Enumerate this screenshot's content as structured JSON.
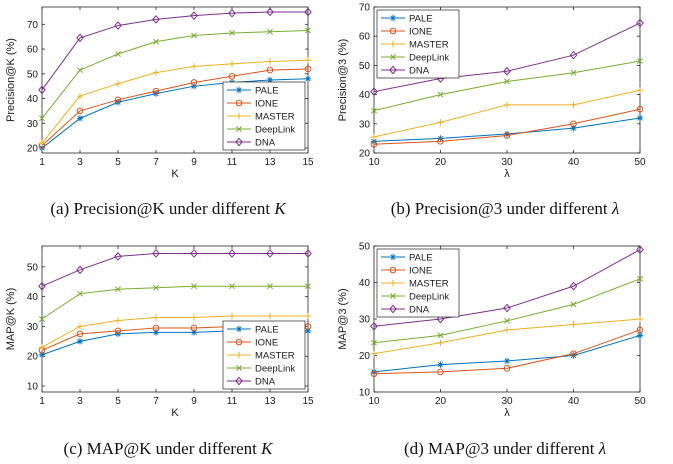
{
  "captions": [
    {
      "prefix": "(a) Precision@K under different ",
      "var": "K"
    },
    {
      "prefix": "(b) Precision@3 under different ",
      "var": "λ"
    },
    {
      "prefix": "(c) MAP@K under different ",
      "var": "K"
    },
    {
      "prefix": "(d) MAP@3 under different ",
      "var": "λ"
    }
  ],
  "colors": {
    "PALE": "#0072bd",
    "IONE": "#d95319",
    "MASTER": "#edb120",
    "DeepLink": "#77ac30",
    "DNA": "#7e2f8e"
  },
  "chart_data": [
    {
      "type": "line",
      "xlabel": "K",
      "ylabel": "Precision@K  (%)",
      "x": [
        1,
        3,
        5,
        7,
        9,
        11,
        13,
        15
      ],
      "xlim": [
        1,
        15
      ],
      "ylim": [
        18,
        77
      ],
      "yticks": [
        20,
        30,
        40,
        50,
        60,
        70
      ],
      "legend_position": "bottom-right",
      "series": [
        {
          "name": "PALE",
          "marker": "asterisk",
          "values": [
            20,
            32,
            38.5,
            42,
            45,
            46.5,
            47.5,
            48
          ]
        },
        {
          "name": "IONE",
          "marker": "circle",
          "values": [
            21,
            35,
            39.5,
            43,
            46.5,
            49,
            51.5,
            52
          ]
        },
        {
          "name": "MASTER",
          "marker": "plus",
          "values": [
            22,
            41,
            46,
            50.5,
            53,
            54,
            55,
            55.5
          ]
        },
        {
          "name": "DeepLink",
          "marker": "x",
          "values": [
            32,
            51.5,
            58,
            63,
            65.5,
            66.5,
            67,
            67.5
          ]
        },
        {
          "name": "DNA",
          "marker": "diamond",
          "values": [
            43.5,
            64.5,
            69.5,
            72,
            73.5,
            74.5,
            75,
            75
          ]
        }
      ]
    },
    {
      "type": "line",
      "xlabel": "λ",
      "ylabel": "Precision@3  (%)",
      "x": [
        10,
        20,
        30,
        40,
        50
      ],
      "xlim": [
        10,
        50
      ],
      "ylim": [
        20,
        70
      ],
      "yticks": [
        20,
        30,
        40,
        50,
        60,
        70
      ],
      "legend_position": "top-left",
      "series": [
        {
          "name": "PALE",
          "marker": "asterisk",
          "values": [
            24,
            25,
            26.5,
            28.5,
            32
          ]
        },
        {
          "name": "IONE",
          "marker": "circle",
          "values": [
            23,
            24,
            26,
            30,
            35
          ]
        },
        {
          "name": "MASTER",
          "marker": "plus",
          "values": [
            25.5,
            30.5,
            36.5,
            36.5,
            41.5
          ]
        },
        {
          "name": "DeepLink",
          "marker": "x",
          "values": [
            34.5,
            40,
            44.5,
            47.5,
            51.5
          ]
        },
        {
          "name": "DNA",
          "marker": "diamond",
          "values": [
            41,
            45.5,
            48,
            53.5,
            64.5
          ]
        }
      ]
    },
    {
      "type": "line",
      "xlabel": "K",
      "ylabel": "MAP@K  (%)",
      "x": [
        1,
        3,
        5,
        7,
        9,
        11,
        13,
        15
      ],
      "xlim": [
        1,
        15
      ],
      "ylim": [
        8,
        57
      ],
      "yticks": [
        10,
        20,
        30,
        40,
        50
      ],
      "legend_position": "bottom-right",
      "series": [
        {
          "name": "PALE",
          "marker": "asterisk",
          "values": [
            20.5,
            25,
            27.5,
            28,
            28,
            28.5,
            28.5,
            28.5
          ]
        },
        {
          "name": "IONE",
          "marker": "circle",
          "values": [
            22,
            27.5,
            28.5,
            29.5,
            29.5,
            30,
            30,
            30
          ]
        },
        {
          "name": "MASTER",
          "marker": "plus",
          "values": [
            23,
            30,
            32,
            33,
            33,
            33.5,
            33.5,
            33.5
          ]
        },
        {
          "name": "DeepLink",
          "marker": "x",
          "values": [
            32.5,
            41,
            42.5,
            43,
            43.5,
            43.5,
            43.5,
            43.5
          ]
        },
        {
          "name": "DNA",
          "marker": "diamond",
          "values": [
            43.5,
            49,
            53.5,
            54.5,
            54.5,
            54.5,
            54.5,
            54.5
          ]
        }
      ]
    },
    {
      "type": "line",
      "xlabel": "λ",
      "ylabel": "MAP@3  (%)",
      "x": [
        10,
        20,
        30,
        40,
        50
      ],
      "xlim": [
        10,
        50
      ],
      "ylim": [
        10,
        50
      ],
      "yticks": [
        10,
        20,
        30,
        40,
        50
      ],
      "legend_position": "top-left",
      "series": [
        {
          "name": "PALE",
          "marker": "asterisk",
          "values": [
            15.5,
            17.5,
            18.5,
            20,
            25.5
          ]
        },
        {
          "name": "IONE",
          "marker": "circle",
          "values": [
            15,
            15.5,
            16.5,
            20.5,
            27
          ]
        },
        {
          "name": "MASTER",
          "marker": "plus",
          "values": [
            20.5,
            23.5,
            27,
            28.5,
            30
          ]
        },
        {
          "name": "DeepLink",
          "marker": "x",
          "values": [
            23.5,
            25.5,
            29.5,
            34,
            41
          ]
        },
        {
          "name": "DNA",
          "marker": "diamond",
          "values": [
            28,
            30,
            33,
            39,
            49
          ]
        }
      ]
    }
  ]
}
